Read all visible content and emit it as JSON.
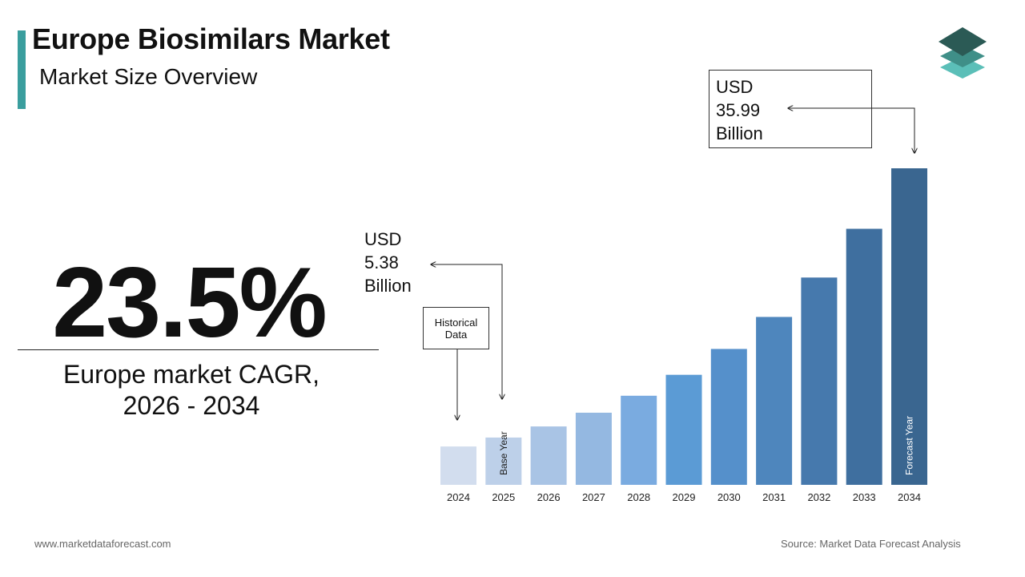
{
  "header": {
    "title": "Europe Biosimilars Market",
    "subtitle": "Market Size Overview"
  },
  "brand": {
    "logo_icon": "stacked-layers-icon",
    "accent_color": "#3a9e9e"
  },
  "cagr": {
    "value": "23.5%",
    "caption_line1": "Europe market CAGR,",
    "caption_line2": "2026 - 2034"
  },
  "callouts": {
    "start": {
      "line1": "USD",
      "line2": "5.38",
      "line3": "Billion"
    },
    "end": {
      "line1": "USD",
      "line2": "35.99",
      "line3": "Billion"
    },
    "historical": {
      "line1": "Historical",
      "line2": "Data"
    }
  },
  "chart_data": {
    "type": "bar",
    "categories": [
      "2024",
      "2025",
      "2026",
      "2027",
      "2028",
      "2029",
      "2030",
      "2031",
      "2032",
      "2033",
      "2034"
    ],
    "values": [
      4.36,
      5.38,
      6.64,
      8.2,
      10.13,
      12.51,
      15.45,
      19.09,
      23.57,
      29.11,
      35.99
    ],
    "colors": [
      "#d2ddee",
      "#bdd0e9",
      "#a9c4e5",
      "#94b8e1",
      "#7aabe0",
      "#5b9bd5",
      "#5590cb",
      "#4e86bd",
      "#4679ad",
      "#3f6f9f",
      "#3a6690"
    ],
    "bar_labels": {
      "2025": "Base Year",
      "2034": "Forecast Year"
    },
    "title": "",
    "xlabel": "",
    "ylabel": ""
  },
  "footer": {
    "website": "www.marketdataforecast.com",
    "source": "Source: Market Data Forecast Analysis"
  }
}
